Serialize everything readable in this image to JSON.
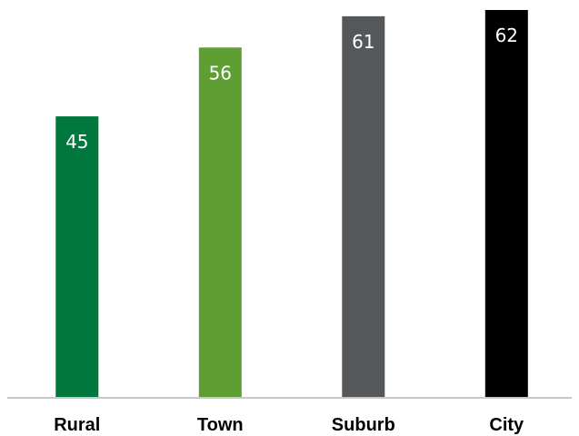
{
  "chart_data": {
    "type": "bar",
    "categories": [
      "Rural",
      "Town",
      "Suburb",
      "City"
    ],
    "values": [
      45,
      56,
      61,
      62
    ],
    "colors": [
      "#00773c",
      "#5e9e32",
      "#55585a",
      "#000000"
    ],
    "title": "",
    "xlabel": "",
    "ylabel": "",
    "ylim": [
      0,
      62
    ],
    "grid": false,
    "legend": "none",
    "data_labels": true
  }
}
